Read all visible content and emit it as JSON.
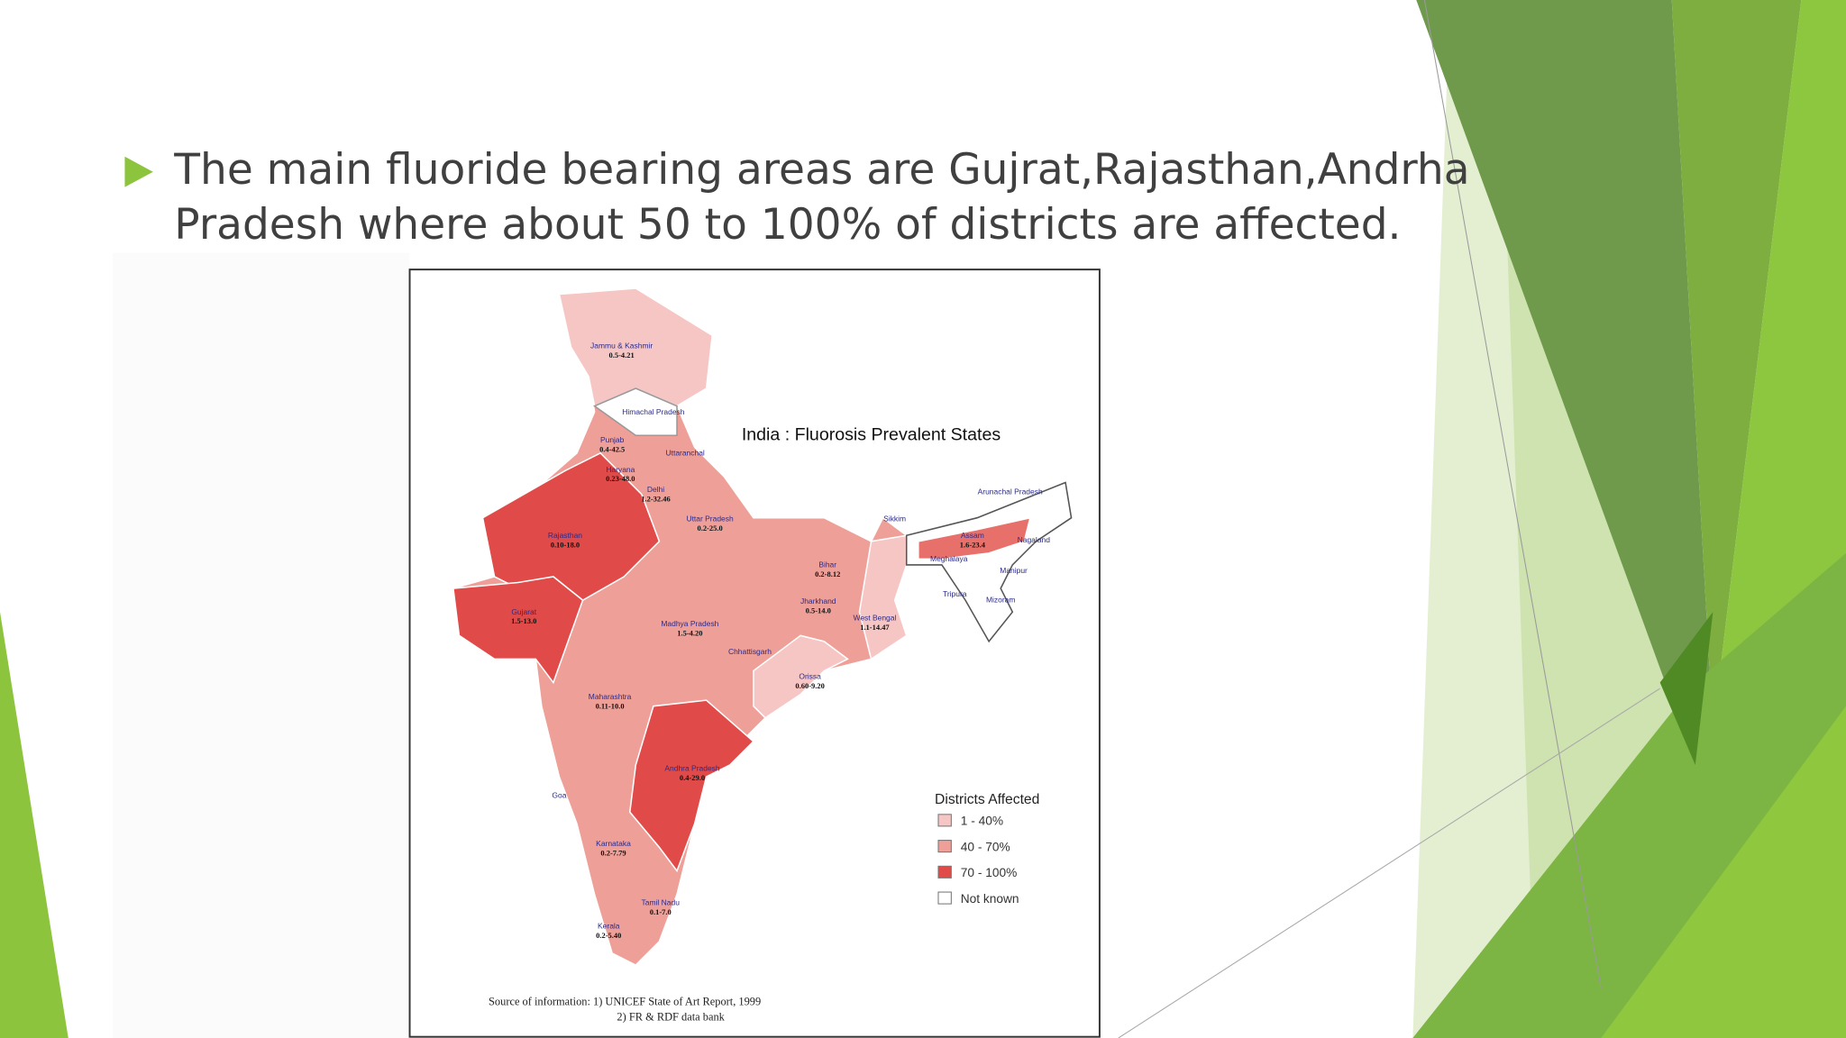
{
  "slide": {
    "bullet_lines": [
      "The main fluoride bearing areas are Gujrat,Rajasthan,Andrha",
      "Pradesh where about 50 to 100% of districts are affected."
    ],
    "map": {
      "title": "India : Fluorosis Prevalent States",
      "states": [
        {
          "name": "Jammu & Kashmir",
          "range": "0.5-4.21"
        },
        {
          "name": "Himachal Pradesh"
        },
        {
          "name": "Punjab",
          "range": "0.4-42.5"
        },
        {
          "name": "Haryana",
          "range": "0.23-48.0"
        },
        {
          "name": "Delhi",
          "range": "1.2-32.46"
        },
        {
          "name": "Uttaranchal"
        },
        {
          "name": "Uttar Pradesh",
          "range": "0.2-25.0"
        },
        {
          "name": "Rajasthan",
          "range": "0.10-18.0"
        },
        {
          "name": "Gujarat",
          "range": "1.5-13.0"
        },
        {
          "name": "Madhya Pradesh",
          "range": "1.5-4.20"
        },
        {
          "name": "Chhattisgarh"
        },
        {
          "name": "Bihar",
          "range": "0.2-8.12"
        },
        {
          "name": "Jharkhand",
          "range": "0.5-14.0"
        },
        {
          "name": "West Bengal",
          "range": "1.1-14.47"
        },
        {
          "name": "Orissa",
          "range": "0.60-9.20"
        },
        {
          "name": "Maharashtra",
          "range": "0.11-10.0"
        },
        {
          "name": "Andhra Pradesh",
          "range": "0.4-29.0"
        },
        {
          "name": "Goa"
        },
        {
          "name": "Karnataka",
          "range": "0.2-7.79"
        },
        {
          "name": "Tamil Nadu",
          "range": "0.1-7.0"
        },
        {
          "name": "Kerala",
          "range": "0.2-5.40"
        },
        {
          "name": "Sikkim"
        },
        {
          "name": "Arunachal Pradesh"
        },
        {
          "name": "Assam",
          "range": "1.6-23.4"
        },
        {
          "name": "Nagaland"
        },
        {
          "name": "Meghalaya"
        },
        {
          "name": "Manipur"
        },
        {
          "name": "Tripura"
        },
        {
          "name": "Mizoram"
        }
      ],
      "legend": {
        "title": "Districts Affected",
        "items": [
          {
            "label": "1 - 40%",
            "color": "#f6c6c4"
          },
          {
            "label": "40 - 70%",
            "color": "#ee9f98"
          },
          {
            "label": "70 - 100%",
            "color": "#e04a48"
          },
          {
            "label": "Not known",
            "color": "#ffffff"
          }
        ]
      },
      "source": [
        "Source of information:  1)  UNICEF State of Art Report, 1999",
        "2)  FR & RDF data bank"
      ]
    }
  }
}
